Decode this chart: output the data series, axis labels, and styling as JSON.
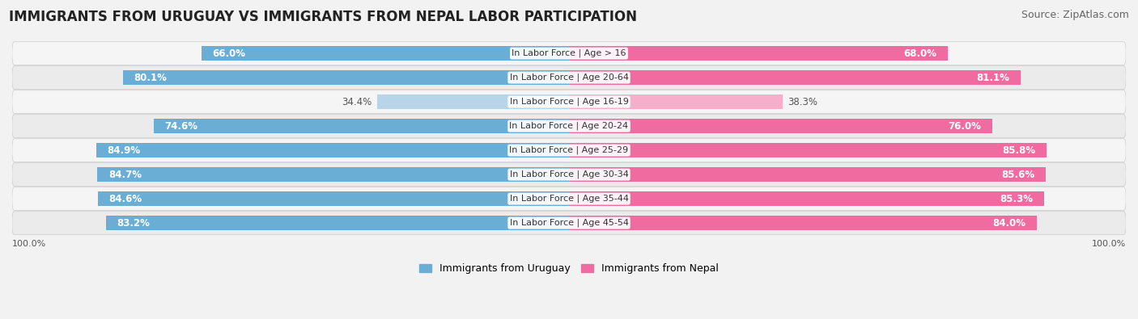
{
  "title": "IMMIGRANTS FROM URUGUAY VS IMMIGRANTS FROM NEPAL LABOR PARTICIPATION",
  "source": "Source: ZipAtlas.com",
  "categories": [
    "In Labor Force | Age > 16",
    "In Labor Force | Age 20-64",
    "In Labor Force | Age 16-19",
    "In Labor Force | Age 20-24",
    "In Labor Force | Age 25-29",
    "In Labor Force | Age 30-34",
    "In Labor Force | Age 35-44",
    "In Labor Force | Age 45-54"
  ],
  "uruguay_values": [
    66.0,
    80.1,
    34.4,
    74.6,
    84.9,
    84.7,
    84.6,
    83.2
  ],
  "nepal_values": [
    68.0,
    81.1,
    38.3,
    76.0,
    85.8,
    85.6,
    85.3,
    84.0
  ],
  "uruguay_color": "#6AAED6",
  "nepal_color": "#F06BA0",
  "uruguay_light_color": "#B8D4E8",
  "nepal_light_color": "#F7AECB",
  "bar_height": 0.58,
  "background_color": "#F2F2F2",
  "row_bg_even": "#EBEBEB",
  "row_bg_odd": "#F5F5F5",
  "label_white": "#FFFFFF",
  "label_dark": "#555555",
  "max_value": 100.0,
  "legend_uruguay": "Immigrants from Uruguay",
  "legend_nepal": "Immigrants from Nepal",
  "title_fontsize": 12,
  "source_fontsize": 9,
  "value_fontsize": 8.5,
  "cat_fontsize": 8,
  "axis_label_fontsize": 8,
  "light_row_index": 2
}
